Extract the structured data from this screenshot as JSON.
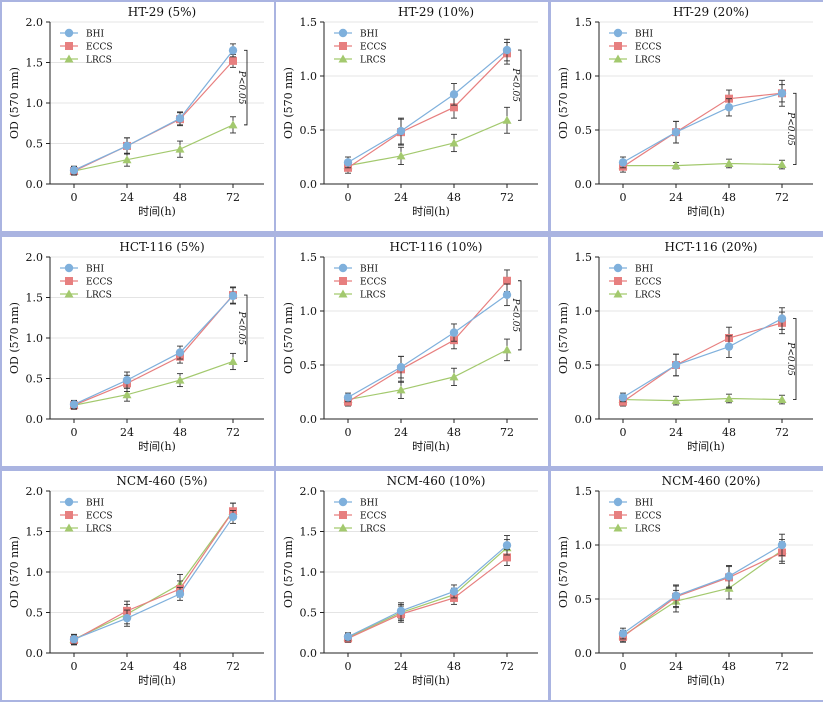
{
  "figure": {
    "ylabel": "OD (570 nm)",
    "xlabel": "时间(h)",
    "legend": [
      "BHI",
      "ECCS",
      "LRCS"
    ],
    "colors": {
      "BHI": "#7fb0dc",
      "ECCS": "#e77f7f",
      "LRCS": "#a3c96e",
      "panel_bg": "#aab4e1"
    },
    "sig_label": "P<0.05"
  },
  "chart_data": [
    {
      "type": "line",
      "title": "HT-29 (5%)",
      "x": [
        0,
        24,
        48,
        72
      ],
      "ylim": [
        0,
        2.0
      ],
      "yticks": [
        "0.0",
        "0.5",
        "1.0",
        "1.5",
        "2.0"
      ],
      "sig": true,
      "series": [
        {
          "name": "BHI",
          "values": [
            0.17,
            0.47,
            0.81,
            1.65
          ],
          "err": [
            0.05,
            0.1,
            0.08,
            0.08
          ]
        },
        {
          "name": "ECCS",
          "values": [
            0.16,
            0.47,
            0.8,
            1.52
          ],
          "err": [
            0.05,
            0.1,
            0.08,
            0.08
          ]
        },
        {
          "name": "LRCS",
          "values": [
            0.16,
            0.3,
            0.43,
            0.73
          ],
          "err": [
            0.05,
            0.08,
            0.1,
            0.1
          ]
        }
      ]
    },
    {
      "type": "line",
      "title": "HT-29 (10%)",
      "x": [
        0,
        24,
        48,
        72
      ],
      "ylim": [
        0,
        1.5
      ],
      "yticks": [
        "0.0",
        "0.5",
        "1.0",
        "1.5"
      ],
      "sig": true,
      "series": [
        {
          "name": "BHI",
          "values": [
            0.2,
            0.49,
            0.83,
            1.24
          ],
          "err": [
            0.05,
            0.12,
            0.1,
            0.1
          ]
        },
        {
          "name": "ECCS",
          "values": [
            0.15,
            0.48,
            0.71,
            1.21
          ],
          "err": [
            0.05,
            0.12,
            0.1,
            0.1
          ]
        },
        {
          "name": "LRCS",
          "values": [
            0.17,
            0.26,
            0.38,
            0.59
          ],
          "err": [
            0.05,
            0.08,
            0.08,
            0.12
          ]
        }
      ]
    },
    {
      "type": "line",
      "title": "HT-29 (20%)",
      "x": [
        0,
        24,
        48,
        72
      ],
      "ylim": [
        0,
        1.5
      ],
      "yticks": [
        "0.0",
        "0.5",
        "1.0",
        "1.5"
      ],
      "sig": true,
      "series": [
        {
          "name": "BHI",
          "values": [
            0.2,
            0.48,
            0.71,
            0.84
          ],
          "err": [
            0.05,
            0.1,
            0.08,
            0.08
          ]
        },
        {
          "name": "ECCS",
          "values": [
            0.16,
            0.48,
            0.79,
            0.84
          ],
          "err": [
            0.05,
            0.1,
            0.08,
            0.12
          ]
        },
        {
          "name": "LRCS",
          "values": [
            0.17,
            0.17,
            0.19,
            0.18
          ],
          "err": [
            0.03,
            0.03,
            0.04,
            0.04
          ]
        }
      ]
    },
    {
      "type": "line",
      "title": "HCT-116 (5%)",
      "x": [
        0,
        24,
        48,
        72
      ],
      "ylim": [
        0,
        2.0
      ],
      "yticks": [
        "0.0",
        "0.5",
        "1.0",
        "1.5",
        "2.0"
      ],
      "sig": true,
      "series": [
        {
          "name": "BHI",
          "values": [
            0.18,
            0.48,
            0.82,
            1.52
          ],
          "err": [
            0.05,
            0.1,
            0.08,
            0.1
          ]
        },
        {
          "name": "ECCS",
          "values": [
            0.17,
            0.44,
            0.77,
            1.53
          ],
          "err": [
            0.05,
            0.1,
            0.08,
            0.1
          ]
        },
        {
          "name": "LRCS",
          "values": [
            0.17,
            0.3,
            0.48,
            0.71
          ],
          "err": [
            0.05,
            0.08,
            0.08,
            0.1
          ]
        }
      ]
    },
    {
      "type": "line",
      "title": "HCT-116 (10%)",
      "x": [
        0,
        24,
        48,
        72
      ],
      "ylim": [
        0,
        1.5
      ],
      "yticks": [
        "0.0",
        "0.5",
        "1.0",
        "1.5"
      ],
      "sig": true,
      "series": [
        {
          "name": "BHI",
          "values": [
            0.2,
            0.48,
            0.8,
            1.15
          ],
          "err": [
            0.04,
            0.1,
            0.08,
            0.1
          ]
        },
        {
          "name": "ECCS",
          "values": [
            0.16,
            0.46,
            0.73,
            1.28
          ],
          "err": [
            0.04,
            0.12,
            0.08,
            0.1
          ]
        },
        {
          "name": "LRCS",
          "values": [
            0.18,
            0.27,
            0.39,
            0.64
          ],
          "err": [
            0.04,
            0.08,
            0.08,
            0.1
          ]
        }
      ]
    },
    {
      "type": "line",
      "title": "HCT-116 (20%)",
      "x": [
        0,
        24,
        48,
        72
      ],
      "ylim": [
        0,
        1.5
      ],
      "yticks": [
        "0.0",
        "0.5",
        "1.0",
        "1.5"
      ],
      "sig": true,
      "series": [
        {
          "name": "BHI",
          "values": [
            0.2,
            0.5,
            0.67,
            0.93
          ],
          "err": [
            0.04,
            0.1,
            0.1,
            0.1
          ]
        },
        {
          "name": "ECCS",
          "values": [
            0.16,
            0.5,
            0.75,
            0.89
          ],
          "err": [
            0.04,
            0.1,
            0.1,
            0.1
          ]
        },
        {
          "name": "LRCS",
          "values": [
            0.18,
            0.17,
            0.19,
            0.18
          ],
          "err": [
            0.03,
            0.04,
            0.04,
            0.04
          ]
        }
      ]
    },
    {
      "type": "line",
      "title": "NCM-460 (5%)",
      "x": [
        0,
        24,
        48,
        72
      ],
      "ylim": [
        0,
        2.0
      ],
      "yticks": [
        "0.0",
        "0.5",
        "1.0",
        "1.5",
        "2.0"
      ],
      "sig": false,
      "series": [
        {
          "name": "BHI",
          "values": [
            0.17,
            0.43,
            0.73,
            1.68
          ],
          "err": [
            0.06,
            0.1,
            0.08,
            0.08
          ]
        },
        {
          "name": "ECCS",
          "values": [
            0.16,
            0.52,
            0.79,
            1.75
          ],
          "err": [
            0.06,
            0.12,
            0.1,
            0.1
          ]
        },
        {
          "name": "LRCS",
          "values": [
            0.17,
            0.48,
            0.85,
            1.75
          ],
          "err": [
            0.06,
            0.12,
            0.12,
            0.1
          ]
        }
      ]
    },
    {
      "type": "line",
      "title": "NCM-460 (10%)",
      "x": [
        0,
        24,
        48,
        72
      ],
      "ylim": [
        0,
        2.0
      ],
      "yticks": [
        "0.0",
        "0.5",
        "1.0",
        "1.5",
        "2.0"
      ],
      "sig": false,
      "series": [
        {
          "name": "BHI",
          "values": [
            0.2,
            0.52,
            0.76,
            1.33
          ],
          "err": [
            0.05,
            0.1,
            0.08,
            0.12
          ]
        },
        {
          "name": "ECCS",
          "values": [
            0.18,
            0.48,
            0.68,
            1.18
          ],
          "err": [
            0.05,
            0.1,
            0.08,
            0.1
          ]
        },
        {
          "name": "LRCS",
          "values": [
            0.19,
            0.5,
            0.72,
            1.3
          ],
          "err": [
            0.05,
            0.1,
            0.08,
            0.1
          ]
        }
      ]
    },
    {
      "type": "line",
      "title": "NCM-460 (20%)",
      "x": [
        0,
        24,
        48,
        72
      ],
      "ylim": [
        0,
        1.5
      ],
      "yticks": [
        "0.0",
        "0.5",
        "1.0",
        "1.5"
      ],
      "sig": false,
      "series": [
        {
          "name": "BHI",
          "values": [
            0.18,
            0.53,
            0.71,
            1.0
          ],
          "err": [
            0.05,
            0.1,
            0.1,
            0.1
          ]
        },
        {
          "name": "ECCS",
          "values": [
            0.15,
            0.52,
            0.7,
            0.93
          ],
          "err": [
            0.05,
            0.1,
            0.1,
            0.1
          ]
        },
        {
          "name": "LRCS",
          "values": [
            0.16,
            0.48,
            0.6,
            0.95
          ],
          "err": [
            0.05,
            0.1,
            0.1,
            0.1
          ]
        }
      ]
    }
  ]
}
